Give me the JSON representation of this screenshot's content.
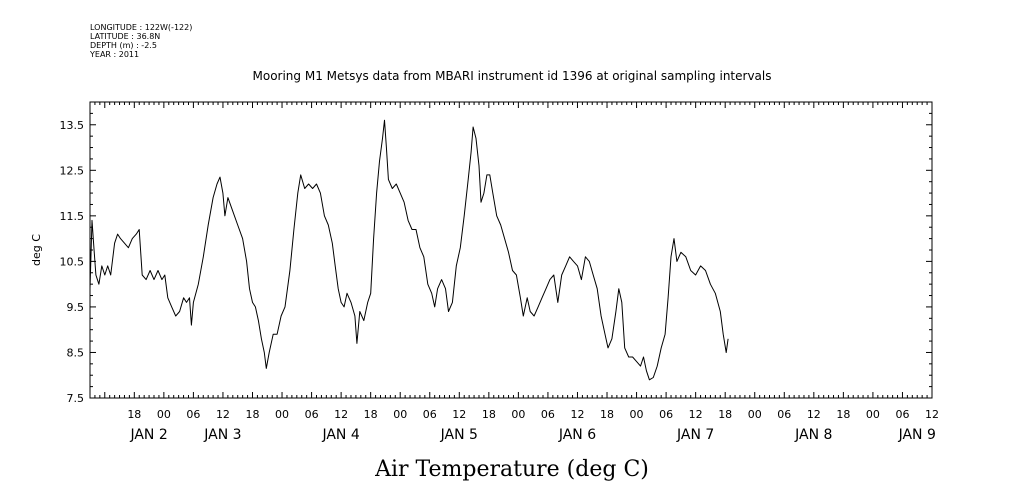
{
  "meta": [
    "LONGITUDE : 122W(-122)",
    "LATITUDE : 36.8N",
    "DEPTH (m) : -2.5",
    "YEAR : 2011"
  ],
  "chart_data": {
    "type": "line",
    "title": "Mooring M1 Metsys data from MBARI instrument id 1396 at original sampling intervals",
    "xlabel": "Air Temperature (deg C)",
    "ylabel": "deg C",
    "xlim_hours": [
      9,
      180
    ],
    "ylim": [
      7.5,
      14.0
    ],
    "yticks": [
      "7.5",
      "8.5",
      "9.5",
      "10.5",
      "11.5",
      "12.5",
      "13.5"
    ],
    "hour_ticks": [
      {
        "h": 18,
        "label": "18"
      },
      {
        "h": 24,
        "label": "00"
      },
      {
        "h": 30,
        "label": "06"
      },
      {
        "h": 36,
        "label": "12"
      },
      {
        "h": 42,
        "label": "18"
      },
      {
        "h": 48,
        "label": "00"
      },
      {
        "h": 54,
        "label": "06"
      },
      {
        "h": 60,
        "label": "12"
      },
      {
        "h": 66,
        "label": "18"
      },
      {
        "h": 72,
        "label": "00"
      },
      {
        "h": 78,
        "label": "06"
      },
      {
        "h": 84,
        "label": "12"
      },
      {
        "h": 90,
        "label": "18"
      },
      {
        "h": 96,
        "label": "00"
      },
      {
        "h": 102,
        "label": "06"
      },
      {
        "h": 108,
        "label": "12"
      },
      {
        "h": 114,
        "label": "18"
      },
      {
        "h": 120,
        "label": "00"
      },
      {
        "h": 126,
        "label": "06"
      },
      {
        "h": 132,
        "label": "12"
      },
      {
        "h": 138,
        "label": "18"
      },
      {
        "h": 144,
        "label": "00"
      },
      {
        "h": 150,
        "label": "06"
      },
      {
        "h": 156,
        "label": "12"
      },
      {
        "h": 162,
        "label": "18"
      },
      {
        "h": 168,
        "label": "00"
      },
      {
        "h": 174,
        "label": "06"
      },
      {
        "h": 180,
        "label": "12"
      }
    ],
    "day_labels": [
      {
        "h": 21,
        "label": "JAN  2"
      },
      {
        "h": 36,
        "label": "JAN  3"
      },
      {
        "h": 60,
        "label": "JAN  4"
      },
      {
        "h": 84,
        "label": "JAN  5"
      },
      {
        "h": 108,
        "label": "JAN  6"
      },
      {
        "h": 132,
        "label": "JAN  7"
      },
      {
        "h": 156,
        "label": "JAN  8"
      },
      {
        "h": 177,
        "label": "JAN  9"
      }
    ],
    "series": [
      {
        "color": "#000000",
        "points": [
          [
            9.0,
            9.9
          ],
          [
            9.4,
            11.4
          ],
          [
            9.8,
            10.8
          ],
          [
            10.2,
            10.2
          ],
          [
            10.8,
            10.0
          ],
          [
            11.4,
            10.4
          ],
          [
            12.0,
            10.2
          ],
          [
            12.6,
            10.4
          ],
          [
            13.2,
            10.2
          ],
          [
            14.0,
            10.9
          ],
          [
            14.6,
            11.1
          ],
          [
            15.2,
            11.0
          ],
          [
            16.0,
            10.9
          ],
          [
            16.8,
            10.8
          ],
          [
            17.6,
            11.0
          ],
          [
            18.4,
            11.1
          ],
          [
            19.0,
            11.2
          ],
          [
            19.6,
            10.2
          ],
          [
            20.4,
            10.1
          ],
          [
            21.2,
            10.3
          ],
          [
            22.0,
            10.1
          ],
          [
            22.8,
            10.3
          ],
          [
            23.6,
            10.1
          ],
          [
            24.2,
            10.2
          ],
          [
            24.8,
            9.7
          ],
          [
            25.6,
            9.5
          ],
          [
            26.4,
            9.3
          ],
          [
            27.2,
            9.4
          ],
          [
            28.0,
            9.7
          ],
          [
            28.6,
            9.6
          ],
          [
            29.2,
            9.7
          ],
          [
            29.6,
            9.1
          ],
          [
            30.0,
            9.6
          ],
          [
            31.0,
            10.0
          ],
          [
            32.0,
            10.6
          ],
          [
            33.0,
            11.3
          ],
          [
            34.0,
            11.9
          ],
          [
            34.8,
            12.2
          ],
          [
            35.4,
            12.35
          ],
          [
            36.0,
            12.0
          ],
          [
            36.4,
            11.5
          ],
          [
            37.0,
            11.9
          ],
          [
            38.0,
            11.6
          ],
          [
            39.0,
            11.3
          ],
          [
            40.0,
            11.0
          ],
          [
            40.8,
            10.5
          ],
          [
            41.4,
            9.9
          ],
          [
            42.0,
            9.6
          ],
          [
            42.6,
            9.5
          ],
          [
            43.2,
            9.2
          ],
          [
            43.8,
            8.8
          ],
          [
            44.4,
            8.5
          ],
          [
            44.8,
            8.15
          ],
          [
            45.4,
            8.5
          ],
          [
            46.2,
            8.9
          ],
          [
            47.0,
            8.9
          ],
          [
            47.8,
            9.3
          ],
          [
            48.6,
            9.5
          ],
          [
            49.6,
            10.3
          ],
          [
            50.4,
            11.2
          ],
          [
            51.2,
            12.0
          ],
          [
            51.8,
            12.4
          ],
          [
            52.6,
            12.1
          ],
          [
            53.4,
            12.2
          ],
          [
            54.2,
            12.1
          ],
          [
            55.0,
            12.2
          ],
          [
            55.8,
            12.0
          ],
          [
            56.6,
            11.5
          ],
          [
            57.4,
            11.3
          ],
          [
            58.2,
            10.9
          ],
          [
            58.8,
            10.4
          ],
          [
            59.4,
            9.9
          ],
          [
            60.0,
            9.6
          ],
          [
            60.6,
            9.5
          ],
          [
            61.2,
            9.8
          ],
          [
            62.0,
            9.6
          ],
          [
            62.8,
            9.3
          ],
          [
            63.2,
            8.7
          ],
          [
            63.8,
            9.4
          ],
          [
            64.6,
            9.2
          ],
          [
            65.4,
            9.6
          ],
          [
            66.0,
            9.8
          ],
          [
            66.6,
            11.0
          ],
          [
            67.2,
            12.0
          ],
          [
            67.8,
            12.7
          ],
          [
            68.4,
            13.2
          ],
          [
            68.8,
            13.6
          ],
          [
            69.2,
            13.0
          ],
          [
            69.6,
            12.3
          ],
          [
            70.4,
            12.1
          ],
          [
            71.2,
            12.2
          ],
          [
            72.0,
            12.0
          ],
          [
            72.8,
            11.8
          ],
          [
            73.6,
            11.4
          ],
          [
            74.4,
            11.2
          ],
          [
            75.2,
            11.2
          ],
          [
            76.0,
            10.8
          ],
          [
            76.8,
            10.6
          ],
          [
            77.6,
            10.0
          ],
          [
            78.4,
            9.8
          ],
          [
            79.0,
            9.5
          ],
          [
            79.6,
            9.9
          ],
          [
            80.4,
            10.1
          ],
          [
            81.2,
            9.9
          ],
          [
            81.8,
            9.4
          ],
          [
            82.6,
            9.6
          ],
          [
            83.4,
            10.4
          ],
          [
            84.2,
            10.8
          ],
          [
            85.0,
            11.5
          ],
          [
            85.8,
            12.3
          ],
          [
            86.4,
            12.9
          ],
          [
            86.8,
            13.45
          ],
          [
            87.4,
            13.2
          ],
          [
            88.0,
            12.6
          ],
          [
            88.4,
            11.8
          ],
          [
            89.0,
            12.0
          ],
          [
            89.6,
            12.4
          ],
          [
            90.2,
            12.4
          ],
          [
            90.8,
            12.0
          ],
          [
            91.6,
            11.5
          ],
          [
            92.4,
            11.3
          ],
          [
            93.2,
            11.0
          ],
          [
            94.0,
            10.7
          ],
          [
            94.8,
            10.3
          ],
          [
            95.6,
            10.2
          ],
          [
            96.4,
            9.7
          ],
          [
            97.0,
            9.3
          ],
          [
            97.8,
            9.7
          ],
          [
            98.4,
            9.4
          ],
          [
            99.2,
            9.3
          ],
          [
            100.0,
            9.5
          ],
          [
            100.8,
            9.7
          ],
          [
            101.6,
            9.9
          ],
          [
            102.4,
            10.1
          ],
          [
            103.2,
            10.2
          ],
          [
            104.0,
            9.6
          ],
          [
            104.8,
            10.2
          ],
          [
            105.6,
            10.4
          ],
          [
            106.4,
            10.6
          ],
          [
            107.2,
            10.5
          ],
          [
            108.0,
            10.4
          ],
          [
            108.8,
            10.1
          ],
          [
            109.6,
            10.6
          ],
          [
            110.4,
            10.5
          ],
          [
            111.2,
            10.2
          ],
          [
            112.0,
            9.9
          ],
          [
            112.8,
            9.3
          ],
          [
            113.6,
            8.9
          ],
          [
            114.2,
            8.6
          ],
          [
            115.0,
            8.8
          ],
          [
            115.8,
            9.4
          ],
          [
            116.4,
            9.9
          ],
          [
            117.0,
            9.6
          ],
          [
            117.6,
            8.6
          ],
          [
            118.4,
            8.4
          ],
          [
            119.2,
            8.4
          ],
          [
            120.0,
            8.3
          ],
          [
            120.8,
            8.2
          ],
          [
            121.4,
            8.4
          ],
          [
            122.0,
            8.1
          ],
          [
            122.6,
            7.9
          ],
          [
            123.4,
            7.95
          ],
          [
            124.2,
            8.2
          ],
          [
            125.0,
            8.6
          ],
          [
            125.8,
            8.9
          ],
          [
            126.4,
            9.7
          ],
          [
            127.0,
            10.6
          ],
          [
            127.6,
            11.0
          ],
          [
            128.2,
            10.5
          ],
          [
            129.0,
            10.7
          ],
          [
            130.0,
            10.6
          ],
          [
            131.0,
            10.3
          ],
          [
            132.0,
            10.2
          ],
          [
            133.0,
            10.4
          ],
          [
            134.0,
            10.3
          ],
          [
            135.0,
            10.0
          ],
          [
            136.0,
            9.8
          ],
          [
            137.0,
            9.4
          ],
          [
            137.6,
            8.9
          ],
          [
            138.2,
            8.5
          ],
          [
            138.6,
            8.8
          ]
        ]
      }
    ]
  }
}
